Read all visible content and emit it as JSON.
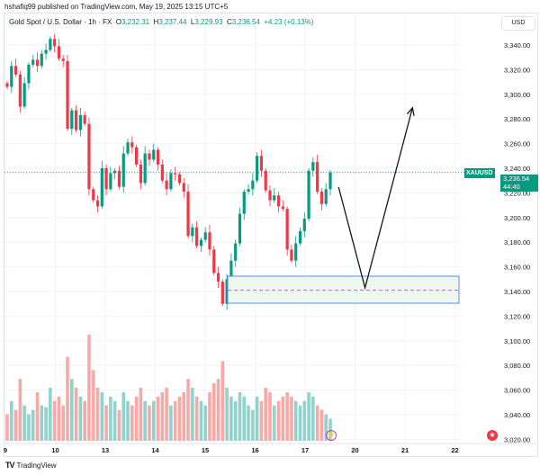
{
  "header": {
    "published": "hshafiq99 published on TradingView.com, May 19, 2025 13:15 UTC+5"
  },
  "legend": {
    "title": "Gold Spot / U.S. Dollar · 1h · FX",
    "o_label": "O",
    "o": "3,232.31",
    "h_label": "H",
    "h": "3,237.44",
    "l_label": "L",
    "l": "3,229.93",
    "c_label": "C",
    "c": "3,236.54",
    "change": "+4.23 (+0.13%)"
  },
  "price_axis": {
    "currency": "USD",
    "symbol": "XAUUSD",
    "last_price": "3,236.54",
    "countdown": "44:40"
  },
  "footer": {
    "brand": "TradingView"
  },
  "colors": {
    "up": "#089981",
    "down": "#f23645",
    "up_vol": "#92d2cc",
    "down_vol": "#f7a9a7",
    "box_border": "#5b8cf5",
    "box_fill": "#edf7ee",
    "dash": "#ba68c8",
    "arrow": "#131722"
  },
  "icons": {
    "event": "lightning-icon",
    "flag": "us-flag-icon"
  },
  "chart_data": {
    "type": "candlestick",
    "symbol": "XAUUSD",
    "interval": "1h",
    "ylim": [
      3010,
      3360
    ],
    "yticks": [
      "3,340.00",
      "3,320.00",
      "3,300.00",
      "3,280.00",
      "3,260.00",
      "3,240.00",
      "3,220.00",
      "3,200.00",
      "3,180.00",
      "3,160.00",
      "3,140.00",
      "3,120.00",
      "3,100.00",
      "3,080.00",
      "3,060.00",
      "3,040.00",
      "3,020.00"
    ],
    "ytick_values": [
      3340,
      3320,
      3300,
      3280,
      3260,
      3240,
      3220,
      3200,
      3180,
      3160,
      3140,
      3120,
      3100,
      3080,
      3060,
      3040,
      3020
    ],
    "xticks": [
      "9",
      "10",
      "13",
      "14",
      "15",
      "16",
      "17",
      "20",
      "21",
      "22"
    ],
    "closes": [
      3306,
      3323,
      3316,
      3290,
      3309,
      3324,
      3328,
      3323,
      3333,
      3336,
      3345,
      3339,
      3329,
      3327,
      3272,
      3287,
      3271,
      3283,
      3276,
      3223,
      3214,
      3209,
      3240,
      3223,
      3236,
      3238,
      3225,
      3252,
      3261,
      3257,
      3243,
      3228,
      3252,
      3247,
      3255,
      3243,
      3230,
      3223,
      3236,
      3235,
      3228,
      3221,
      3185,
      3192,
      3177,
      3182,
      3188,
      3174,
      3155,
      3148,
      3130,
      3150,
      3165,
      3179,
      3203,
      3221,
      3223,
      3230,
      3250,
      3238,
      3222,
      3214,
      3218,
      3209,
      3207,
      3174,
      3165,
      3179,
      3189,
      3199,
      3238,
      3245,
      3221,
      3211,
      3223,
      3236.54
    ],
    "volumes": [
      30,
      45,
      35,
      70,
      40,
      30,
      35,
      55,
      40,
      38,
      60,
      45,
      50,
      40,
      95,
      70,
      60,
      50,
      45,
      120,
      80,
      60,
      55,
      40,
      50,
      45,
      35,
      55,
      45,
      40,
      50,
      60,
      45,
      40,
      45,
      50,
      55,
      60,
      40,
      45,
      50,
      55,
      70,
      60,
      50,
      45,
      40,
      55,
      65,
      70,
      90,
      60,
      50,
      45,
      55,
      50,
      40,
      35,
      50,
      45,
      60,
      55,
      40,
      45,
      50,
      55,
      50,
      45,
      40,
      45,
      55,
      50,
      40,
      35,
      30,
      25
    ],
    "drawings": {
      "zone": {
        "top": 3152.4,
        "bottom": 3130.5,
        "mid": 3141
      },
      "projection": [
        {
          "day": 6.67,
          "price": 3224.7
        },
        {
          "day": 7.2,
          "price": 3143
        },
        {
          "day": 8.15,
          "price": 3289
        }
      ]
    }
  }
}
